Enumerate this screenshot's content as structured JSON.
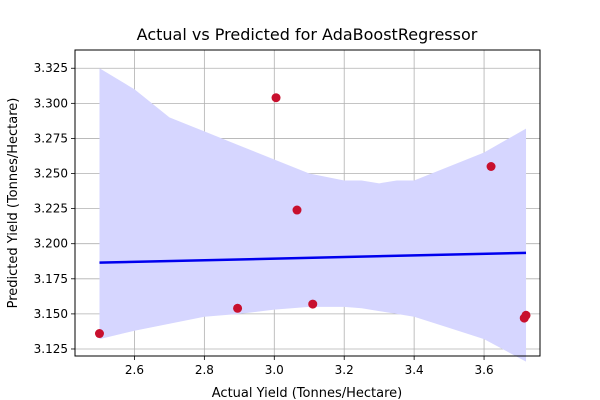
{
  "chart_data": {
    "type": "scatter",
    "title": "Actual vs Predicted for AdaBoostRegressor",
    "xlabel": "Actual Yield (Tonnes/Hectare)",
    "ylabel": "Predicted Yield (Tonnes/Hectare)",
    "xlim": [
      2.43,
      3.76
    ],
    "ylim": [
      3.12,
      3.338
    ],
    "grid": true,
    "x_ticks": [
      2.6,
      2.8,
      3.0,
      3.2,
      3.4,
      3.6
    ],
    "x_tick_labels": [
      "2.6",
      "2.8",
      "3.0",
      "3.2",
      "3.4",
      "3.6"
    ],
    "y_ticks": [
      3.125,
      3.15,
      3.175,
      3.2,
      3.225,
      3.25,
      3.275,
      3.3,
      3.325
    ],
    "y_tick_labels": [
      "3.125",
      "3.150",
      "3.175",
      "3.200",
      "3.225",
      "3.250",
      "3.275",
      "3.300",
      "3.325"
    ],
    "points": {
      "color": "#c8102e",
      "x": [
        2.5,
        2.895,
        3.005,
        3.065,
        3.11,
        3.62,
        3.715,
        3.72
      ],
      "y": [
        3.136,
        3.154,
        3.304,
        3.224,
        3.157,
        3.255,
        3.147,
        3.149
      ]
    },
    "regression_line": {
      "color": "#0000ee",
      "x": [
        2.5,
        3.72
      ],
      "y": [
        3.1865,
        3.1935
      ]
    },
    "confidence_band": {
      "color": "#d6d6ff",
      "x": [
        2.5,
        2.6,
        2.7,
        2.8,
        2.9,
        3.0,
        3.1,
        3.2,
        3.25,
        3.3,
        3.35,
        3.4,
        3.5,
        3.6,
        3.72
      ],
      "upper": [
        3.325,
        3.31,
        3.29,
        3.28,
        3.27,
        3.26,
        3.25,
        3.245,
        3.245,
        3.243,
        3.245,
        3.245,
        3.255,
        3.265,
        3.282
      ],
      "lower": [
        3.132,
        3.138,
        3.143,
        3.148,
        3.15,
        3.153,
        3.155,
        3.155,
        3.154,
        3.152,
        3.15,
        3.148,
        3.14,
        3.132,
        3.116
      ]
    }
  }
}
